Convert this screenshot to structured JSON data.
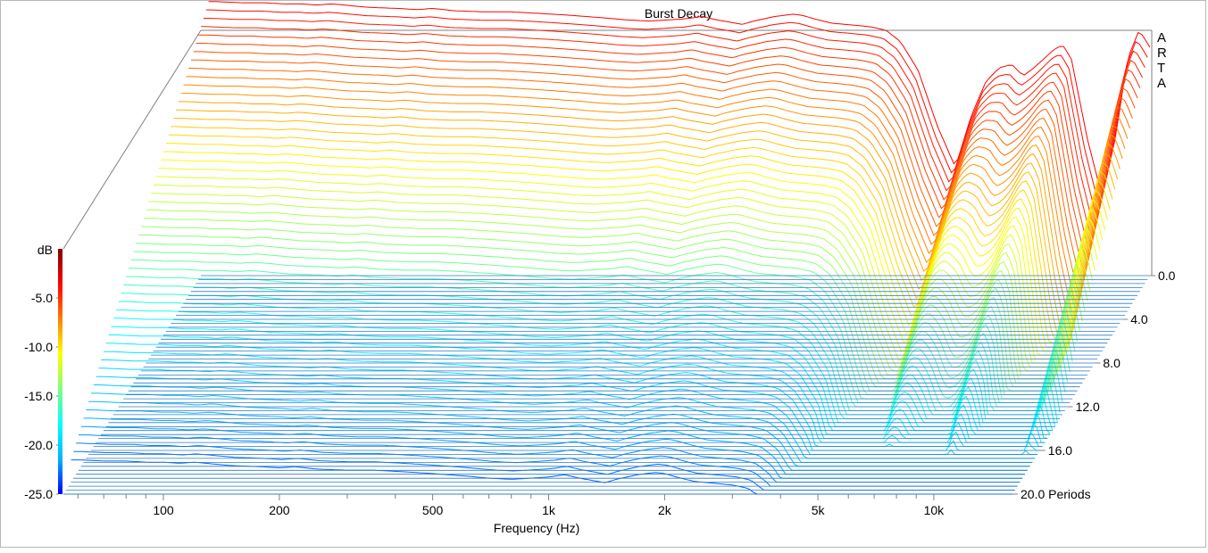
{
  "chart_data": {
    "type": "waterfall",
    "title": "Burst Decay",
    "watermark": [
      "A",
      "R",
      "T",
      "A"
    ],
    "xlabel": "Frequency (Hz)",
    "x_tick_labels": [
      "100",
      "200",
      "500",
      "1k",
      "2k",
      "5k",
      "10k"
    ],
    "x_ticks_hz": [
      100,
      200,
      500,
      1000,
      2000,
      5000,
      10000
    ],
    "xlim_hz": [
      55,
      16000
    ],
    "x_scale": "log",
    "z_axis_label": "Periods",
    "z_tick_labels": [
      "0.0",
      "4.0",
      "8.0",
      "12.0",
      "16.0",
      "20.0 Periods"
    ],
    "z_ticks": [
      0,
      4,
      8,
      12,
      16,
      20
    ],
    "zlim": [
      0,
      20
    ],
    "colorbar": {
      "label": "dB",
      "tick_labels": [
        "-5.0",
        "-10.0",
        "-15.0",
        "-20.0",
        "-25.0"
      ],
      "ticks": [
        -5,
        -10,
        -15,
        -20,
        -25
      ],
      "range": [
        -25,
        0
      ]
    },
    "ylim_db": [
      -25,
      0
    ],
    "slice_count": 56,
    "front_slice": {
      "freq_hz": [
        60,
        70,
        80,
        90,
        100,
        110,
        120,
        150,
        180,
        200,
        220,
        250,
        300,
        350,
        400,
        450,
        500,
        600,
        700,
        800,
        900,
        1000,
        1100,
        1200,
        1300,
        1400,
        1500,
        1700,
        1900,
        2000,
        2200,
        2400,
        2600,
        2800,
        3000,
        3300,
        3600,
        4000,
        4500,
        5000,
        5500,
        6000,
        6500,
        7000,
        7500,
        8000,
        8500,
        9000,
        9500,
        10000,
        11000,
        12000,
        13000,
        14000,
        15000,
        16000
      ],
      "db": [
        -1.0,
        -1.1,
        -1.1,
        -1.2,
        -1.2,
        -1.3,
        -1.2,
        -1.5,
        -1.6,
        -1.7,
        -1.6,
        -1.8,
        -1.9,
        -1.9,
        -2.0,
        -2.1,
        -2.2,
        -2.4,
        -2.6,
        -2.7,
        -2.6,
        -2.5,
        -2.3,
        -2.6,
        -2.8,
        -3.0,
        -2.7,
        -2.3,
        -2.1,
        -2.2,
        -2.6,
        -2.9,
        -3.0,
        -3.1,
        -3.2,
        -3.5,
        -4.5,
        -7.0,
        -12.0,
        -15.5,
        -11.0,
        -8.0,
        -6.8,
        -6.5,
        -7.5,
        -6.8,
        -6.0,
        -5.2,
        -4.8,
        -6.0,
        -13.0,
        -18.0,
        -13.0,
        -6.0,
        -3.5,
        -5.0
      ]
    },
    "colors": {
      "baseline": "#2a7bc9",
      "gradient": [
        "#0000ff",
        "#00b4ff",
        "#00ffff",
        "#80ff80",
        "#ffff00",
        "#ff8000",
        "#ff0000",
        "#800000"
      ]
    }
  }
}
